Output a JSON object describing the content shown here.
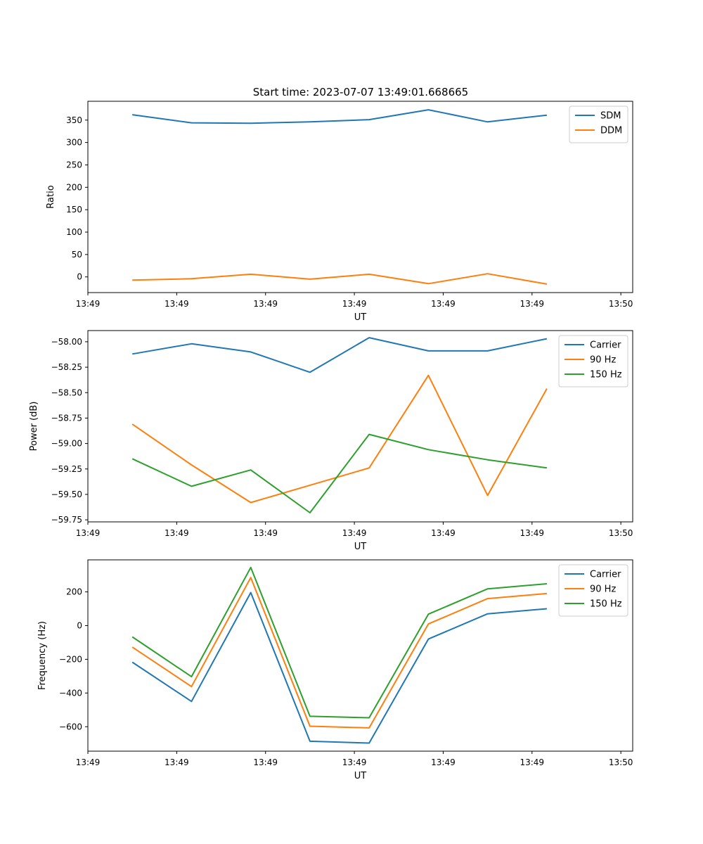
{
  "figure": {
    "title": "Start time: 2023-07-07 13:49:01.668665"
  },
  "chart_data": [
    {
      "type": "line",
      "title": "Start time: 2023-07-07 13:49:01.668665",
      "xlabel": "UT",
      "ylabel": "Ratio",
      "x": [
        0,
        1,
        2,
        3,
        4,
        5,
        6,
        7
      ],
      "xlim": [
        -0.75,
        8.45
      ],
      "x_ticks": [
        -0.75,
        0.75,
        2.25,
        3.75,
        5.25,
        6.75,
        8.25
      ],
      "x_tick_labels": [
        "13:49",
        "13:49",
        "13:49",
        "13:49",
        "13:49",
        "13:49",
        "13:50"
      ],
      "ylim": [
        -35,
        392
      ],
      "y_ticks": [
        0,
        50,
        100,
        150,
        200,
        250,
        300,
        350
      ],
      "y_tick_labels": [
        "0",
        "50",
        "100",
        "150",
        "200",
        "250",
        "300",
        "350"
      ],
      "legend_position": "top-right",
      "series": [
        {
          "name": "SDM",
          "color": "#1f77b4",
          "values": [
            362,
            344,
            343,
            346,
            351,
            373,
            346,
            361
          ]
        },
        {
          "name": "DDM",
          "color": "#ff7f0e",
          "values": [
            -7,
            -4,
            6,
            -5,
            6,
            -15,
            7,
            -16
          ]
        }
      ]
    },
    {
      "type": "line",
      "xlabel": "UT",
      "ylabel": "Power (dB)",
      "x": [
        0,
        1,
        2,
        3,
        4,
        5,
        6,
        7
      ],
      "xlim": [
        -0.75,
        8.45
      ],
      "x_ticks": [
        -0.75,
        0.75,
        2.25,
        3.75,
        5.25,
        6.75,
        8.25
      ],
      "x_tick_labels": [
        "13:49",
        "13:49",
        "13:49",
        "13:49",
        "13:49",
        "13:49",
        "13:50"
      ],
      "ylim": [
        -59.77,
        -57.89
      ],
      "y_ticks": [
        -59.75,
        -59.5,
        -59.25,
        -59.0,
        -58.75,
        -58.5,
        -58.25,
        -58.0
      ],
      "y_tick_labels": [
        "−59.75",
        "−59.50",
        "−59.25",
        "−59.00",
        "−58.75",
        "−58.50",
        "−58.25",
        "−58.00"
      ],
      "legend_position": "top-right",
      "series": [
        {
          "name": "Carrier",
          "color": "#1f77b4",
          "values": [
            -58.12,
            -58.02,
            -58.1,
            -58.3,
            -57.96,
            -58.09,
            -58.09,
            -57.97
          ]
        },
        {
          "name": "90 Hz",
          "color": "#ff7f0e",
          "values": [
            -58.81,
            -59.21,
            -59.58,
            -59.41,
            -59.24,
            -58.33,
            -59.51,
            -58.46
          ]
        },
        {
          "name": "150 Hz",
          "color": "#2ca02c",
          "values": [
            -59.15,
            -59.42,
            -59.26,
            -59.68,
            -58.91,
            -59.06,
            -59.16,
            -59.24
          ]
        }
      ]
    },
    {
      "type": "line",
      "xlabel": "UT",
      "ylabel": "Frequency (Hz)",
      "x": [
        0,
        1,
        2,
        3,
        4,
        5,
        6,
        7
      ],
      "xlim": [
        -0.75,
        8.45
      ],
      "x_ticks": [
        -0.75,
        0.75,
        2.25,
        3.75,
        5.25,
        6.75,
        8.25
      ],
      "x_tick_labels": [
        "13:49",
        "13:49",
        "13:49",
        "13:49",
        "13:49",
        "13:49",
        "13:50"
      ],
      "ylim": [
        -745,
        390
      ],
      "y_ticks": [
        -600,
        -400,
        -200,
        0,
        200
      ],
      "y_tick_labels": [
        "−600",
        "−400",
        "−200",
        "0",
        "200"
      ],
      "legend_position": "top-right",
      "series": [
        {
          "name": "Carrier",
          "color": "#1f77b4",
          "values": [
            -217,
            -450,
            196,
            -686,
            -697,
            -80,
            70,
            100
          ]
        },
        {
          "name": "90 Hz",
          "color": "#ff7f0e",
          "values": [
            -128,
            -362,
            285,
            -597,
            -607,
            10,
            160,
            190
          ]
        },
        {
          "name": "150 Hz",
          "color": "#2ca02c",
          "values": [
            -67,
            -303,
            345,
            -538,
            -547,
            68,
            218,
            248
          ]
        }
      ]
    }
  ]
}
